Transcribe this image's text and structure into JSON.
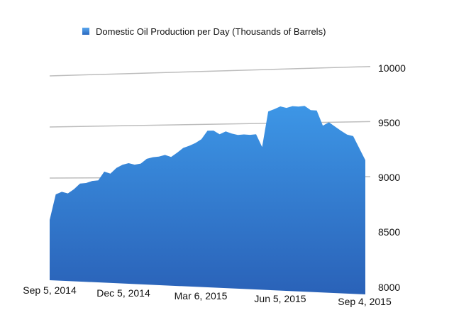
{
  "chart_data": {
    "type": "area",
    "title": "",
    "legend": {
      "placement": "top",
      "entries": [
        "Domestic Oil Production per Day (Thousands of Barrels)"
      ]
    },
    "series": [
      {
        "name": "Domestic Oil Production per Day (Thousands of Barrels)",
        "color": "#2f74cc",
        "values": [
          8590,
          8840,
          8865,
          8850,
          8890,
          8945,
          8950,
          8970,
          8975,
          9060,
          9040,
          9095,
          9125,
          9140,
          9125,
          9135,
          9180,
          9195,
          9200,
          9215,
          9195,
          9235,
          9280,
          9300,
          9325,
          9360,
          9440,
          9440,
          9405,
          9430,
          9410,
          9395,
          9400,
          9395,
          9400,
          9280,
          9610,
          9630,
          9655,
          9640,
          9655,
          9650,
          9655,
          9615,
          9610,
          9470,
          9500,
          9460,
          9420,
          9385,
          9370,
          9260,
          9150
        ]
      }
    ],
    "x_start": "Sep 5, 2014",
    "x_end": "Sep 4, 2015",
    "x_interval": "weekly",
    "x_tick_labels": [
      "Sep 5, 2014",
      "Dec 5, 2014",
      "Mar 6, 2015",
      "Jun 5, 2015",
      "Sep 4, 2015"
    ],
    "y_tick_labels": [
      "10000",
      "9500",
      "9000",
      "8500",
      "8000"
    ],
    "ylim": [
      8000,
      10000
    ],
    "grid": true,
    "style": "3D perspective"
  }
}
